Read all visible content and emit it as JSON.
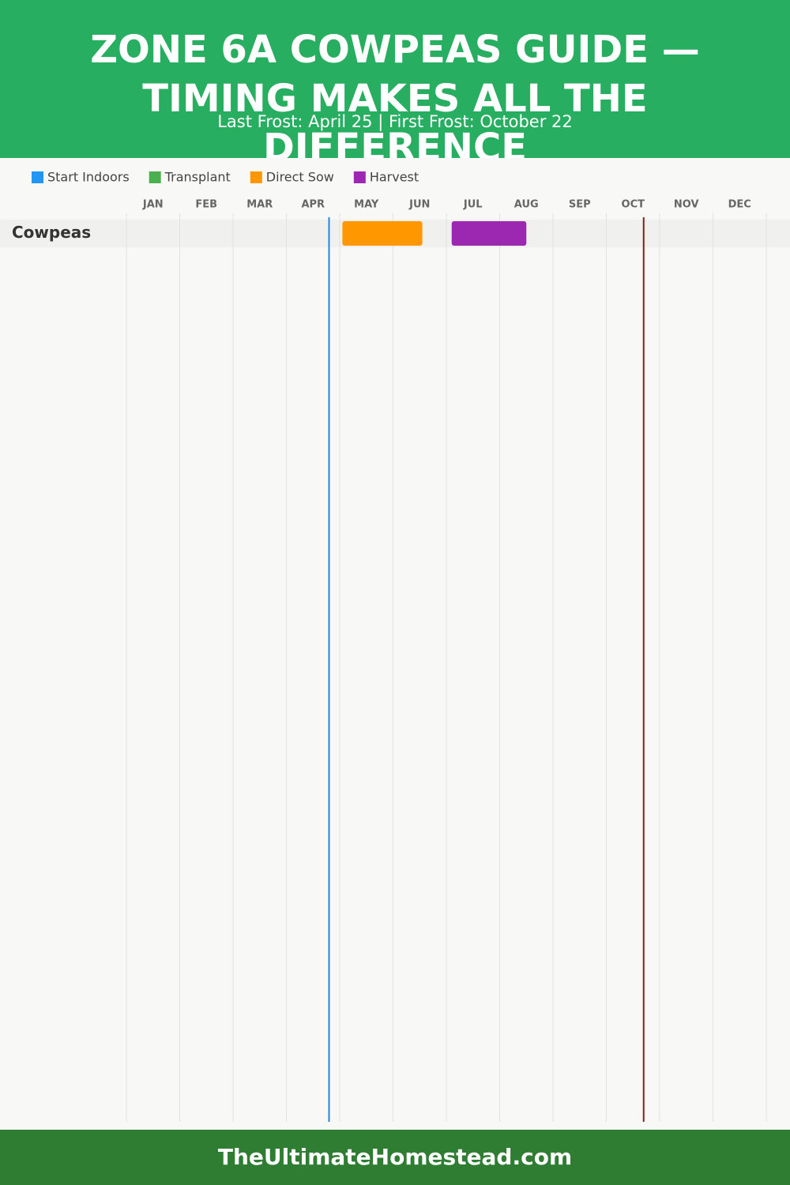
{
  "chart_data": {
    "type": "gantt",
    "title": "ZONE 6A COWPEAS GUIDE — TIMING MAKES ALL THE DIFFERENCE",
    "subtitle": "Last Frost: April 25 | First Frost: October 22",
    "categories": [
      "Cowpeas"
    ],
    "series": [
      {
        "name": "Start Indoors",
        "color": "#2196f3",
        "values": [
          null
        ]
      },
      {
        "name": "Transplant",
        "color": "#4caf50",
        "values": [
          null
        ]
      },
      {
        "name": "Direct Sow",
        "color": "#ff9800",
        "values": [
          [
            4.05,
            5.55
          ]
        ]
      },
      {
        "name": "Harvest",
        "color": "#9c27b0",
        "values": [
          [
            6.1,
            7.5
          ]
        ]
      }
    ],
    "markers": [
      {
        "value": 3.8,
        "color": "#1e88e5"
      },
      {
        "value": 9.7,
        "color": "#8b1a1a"
      }
    ],
    "xlim": [
      0,
      12
    ],
    "xticks": [
      {
        "value": 0,
        "label": "JAN"
      },
      {
        "value": 1,
        "label": "FEB"
      },
      {
        "value": 2,
        "label": "MAR"
      },
      {
        "value": 3,
        "label": "APR"
      },
      {
        "value": 4,
        "label": "MAY"
      },
      {
        "value": 5,
        "label": "JUN"
      },
      {
        "value": 6,
        "label": "JUL"
      },
      {
        "value": 7,
        "label": "AUG"
      },
      {
        "value": 8,
        "label": "SEP"
      },
      {
        "value": 9,
        "label": "OCT"
      },
      {
        "value": 10,
        "label": "NOV"
      },
      {
        "value": 11,
        "label": "DEC"
      }
    ],
    "grid": true
  },
  "footer": "TheUltimateHomestead.com"
}
